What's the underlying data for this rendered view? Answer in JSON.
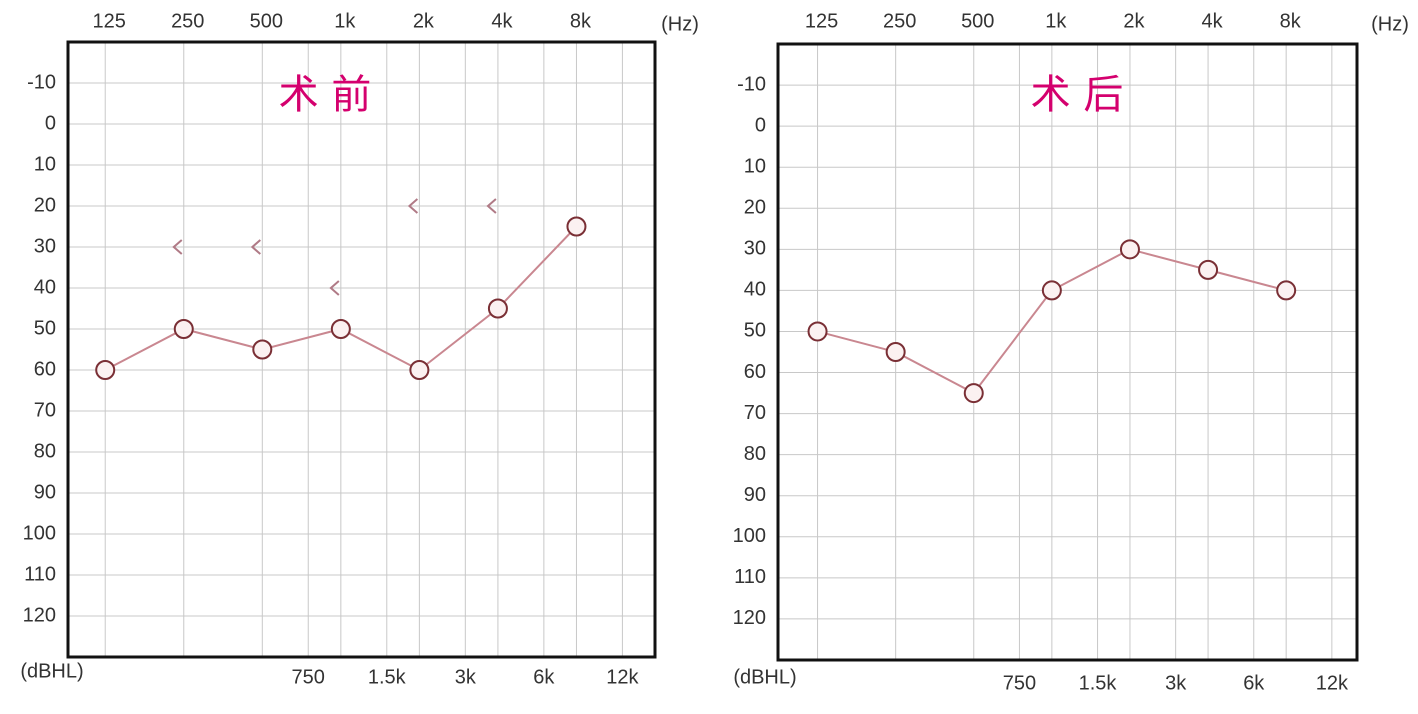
{
  "chart_data": [
    {
      "type": "line",
      "title": "术 前",
      "x_label": "(Hz)",
      "y_label": "(dBHL)",
      "xscale": "log",
      "xlim": [
        90,
        16000
      ],
      "ylim": [
        -20,
        130
      ],
      "y_inverted": true,
      "grid": true,
      "xticks": [
        125,
        250,
        500,
        {
          "value": 1000,
          "label": "1k"
        },
        {
          "value": 2000,
          "label": "2k"
        },
        {
          "value": 4000,
          "label": "4k"
        },
        {
          "value": 8000,
          "label": "8k"
        }
      ],
      "xticks_bottom": [
        {
          "value": 750,
          "label": "750"
        },
        {
          "value": 1500,
          "label": "1.5k"
        },
        {
          "value": 3000,
          "label": "3k"
        },
        {
          "value": 6000,
          "label": "6k"
        },
        {
          "value": 12000,
          "label": "12k"
        }
      ],
      "yticks": [
        -10,
        0,
        10,
        20,
        30,
        40,
        50,
        60,
        70,
        80,
        90,
        100,
        110,
        120
      ],
      "series": [
        {
          "marker": "circle",
          "color": "#c98790",
          "x": [
            125,
            250,
            500,
            1000,
            2000,
            4000,
            8000
          ],
          "values": [
            60,
            50,
            55,
            50,
            60,
            45,
            25
          ]
        },
        {
          "marker": "left-bracket",
          "color": "#b07a86",
          "x": [
            250,
            500,
            1000,
            2000,
            4000
          ],
          "values": [
            30,
            30,
            40,
            20,
            20
          ]
        }
      ]
    },
    {
      "type": "line",
      "title": "术 后",
      "x_label": "(Hz)",
      "y_label": "(dBHL)",
      "xscale": "log",
      "xlim": [
        88,
        15000
      ],
      "ylim": [
        -20,
        130
      ],
      "y_inverted": true,
      "grid": true,
      "xticks": [
        125,
        250,
        500,
        {
          "value": 1000,
          "label": "1k"
        },
        {
          "value": 2000,
          "label": "2k"
        },
        {
          "value": 4000,
          "label": "4k"
        },
        {
          "value": 8000,
          "label": "8k"
        }
      ],
      "xticks_bottom": [
        {
          "value": 750,
          "label": "750"
        },
        {
          "value": 1500,
          "label": "1.5k"
        },
        {
          "value": 3000,
          "label": "3k"
        },
        {
          "value": 6000,
          "label": "6k"
        },
        {
          "value": 12000,
          "label": "12k"
        }
      ],
      "yticks": [
        -10,
        0,
        10,
        20,
        30,
        40,
        50,
        60,
        70,
        80,
        90,
        100,
        110,
        120
      ],
      "series": [
        {
          "marker": "circle",
          "color": "#c98790",
          "x": [
            125,
            250,
            500,
            1000,
            2000,
            4000,
            8000
          ],
          "values": [
            50,
            55,
            65,
            40,
            30,
            35,
            40
          ]
        }
      ]
    }
  ]
}
